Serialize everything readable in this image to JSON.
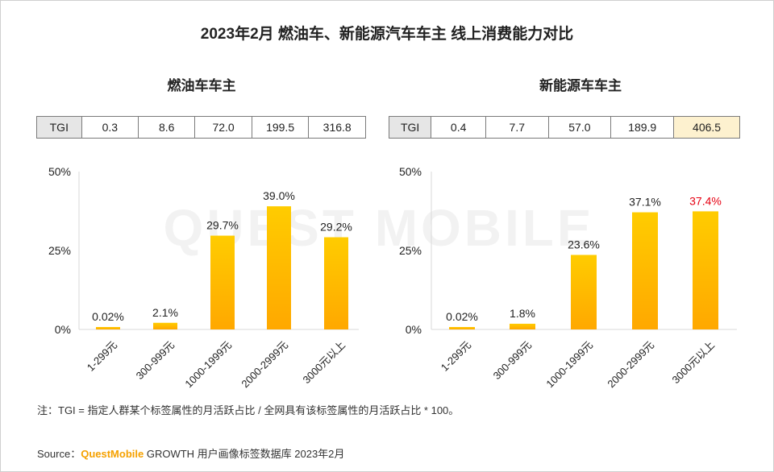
{
  "title": "2023年2月 燃油车、新能源汽车车主 线上消费能力对比",
  "tgi_label": "TGI",
  "watermark": "QUEST MOBILE",
  "colors": {
    "bar_top": "#ffcc00",
    "bar_bottom": "#ffa800",
    "highlight_label": "#e60012",
    "highlight_cell": "#fdf1cf"
  },
  "note": "注：TGI = 指定人群某个标签属性的月活跃占比 / 全网具有该标签属性的月活跃占比 * 100。",
  "source": {
    "prefix": "Source：",
    "brand": "QuestMobile",
    "rest": " GROWTH 用户画像标签数据库 2023年2月"
  },
  "chart_data": [
    {
      "type": "bar",
      "title": "燃油车车主",
      "categories": [
        "1-299元",
        "300-999元",
        "1000-1999元",
        "2000-2999元",
        "3000元以上"
      ],
      "values": [
        0.02,
        2.1,
        29.7,
        39.0,
        29.2
      ],
      "value_labels": [
        "0.02%",
        "2.1%",
        "29.7%",
        "39.0%",
        "29.2%"
      ],
      "tgi": [
        "0.3",
        "8.6",
        "72.0",
        "199.5",
        "316.8"
      ],
      "yticks": [
        "0%",
        "25%",
        "50%"
      ],
      "ylim": [
        0,
        50
      ],
      "highlight_index": -1
    },
    {
      "type": "bar",
      "title": "新能源车车主",
      "categories": [
        "1-299元",
        "300-999元",
        "1000-1999元",
        "2000-2999元",
        "3000元以上"
      ],
      "values": [
        0.02,
        1.8,
        23.6,
        37.1,
        37.4
      ],
      "value_labels": [
        "0.02%",
        "1.8%",
        "23.6%",
        "37.1%",
        "37.4%"
      ],
      "tgi": [
        "0.4",
        "7.7",
        "57.0",
        "189.9",
        "406.5"
      ],
      "yticks": [
        "0%",
        "25%",
        "50%"
      ],
      "ylim": [
        0,
        50
      ],
      "highlight_index": 4
    }
  ]
}
